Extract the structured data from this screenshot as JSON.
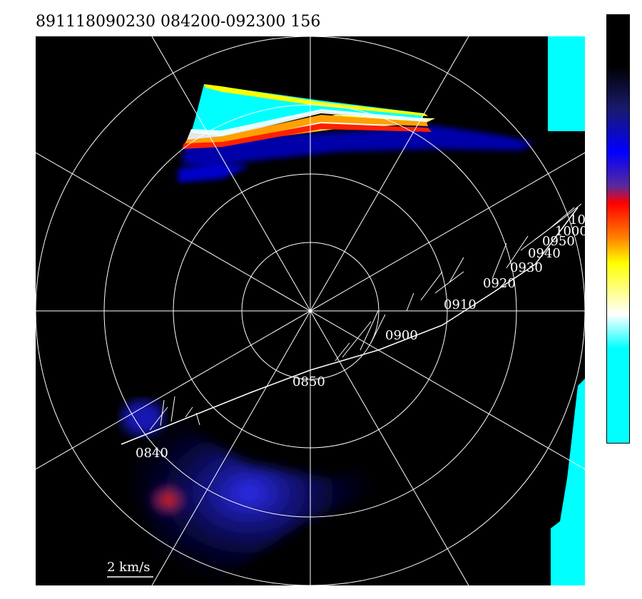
{
  "title": "891118090230 084200-092300 156",
  "scale_label": "2 km/s",
  "colors": {
    "background": "#000000",
    "grid": "#ffffff",
    "cyan": "#00ffff",
    "colorbar_stops": [
      "#000000",
      "#000000",
      "#1a1a6e",
      "#0000ff",
      "#5a2a9a",
      "#ff0000",
      "#ff8000",
      "#ffff00",
      "#ffffff",
      "#00ffff",
      "#00ffff"
    ]
  },
  "time_labels": [
    {
      "id": "t0840",
      "text": "0840"
    },
    {
      "id": "t0850",
      "text": "0850"
    },
    {
      "id": "t0900",
      "text": "0900"
    },
    {
      "id": "t0910",
      "text": "0910"
    },
    {
      "id": "t0920",
      "text": "0920"
    },
    {
      "id": "t0930",
      "text": "0930"
    },
    {
      "id": "t0940",
      "text": "0940"
    },
    {
      "id": "t0950",
      "text": "0950"
    },
    {
      "id": "t1000",
      "text": "1000"
    },
    {
      "id": "t1010",
      "text": "10"
    }
  ]
}
